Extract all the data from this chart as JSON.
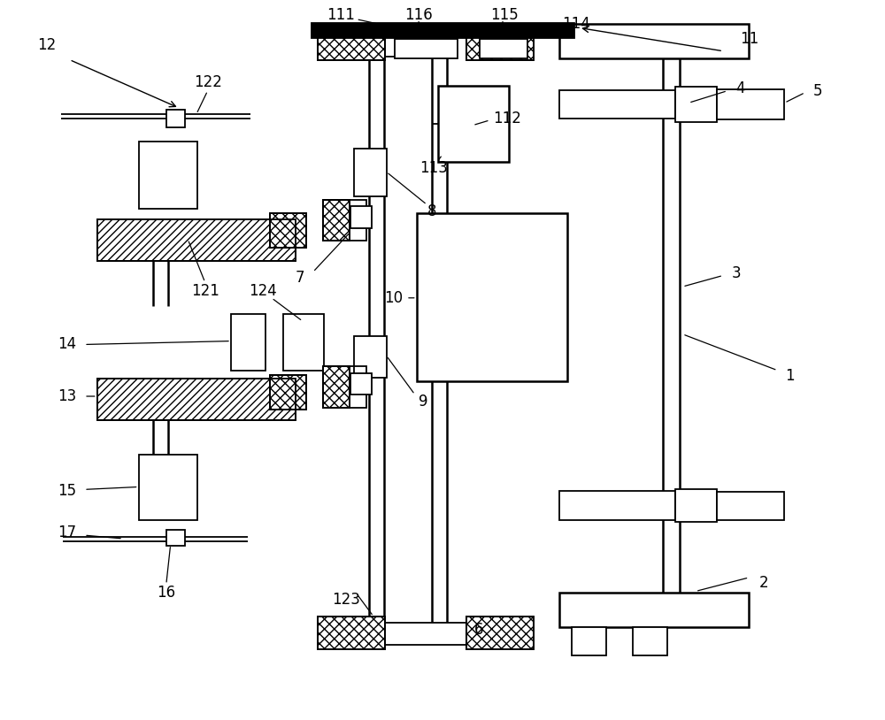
{
  "bg_color": "#ffffff",
  "line_color": "#000000",
  "label_fontsize": 12
}
